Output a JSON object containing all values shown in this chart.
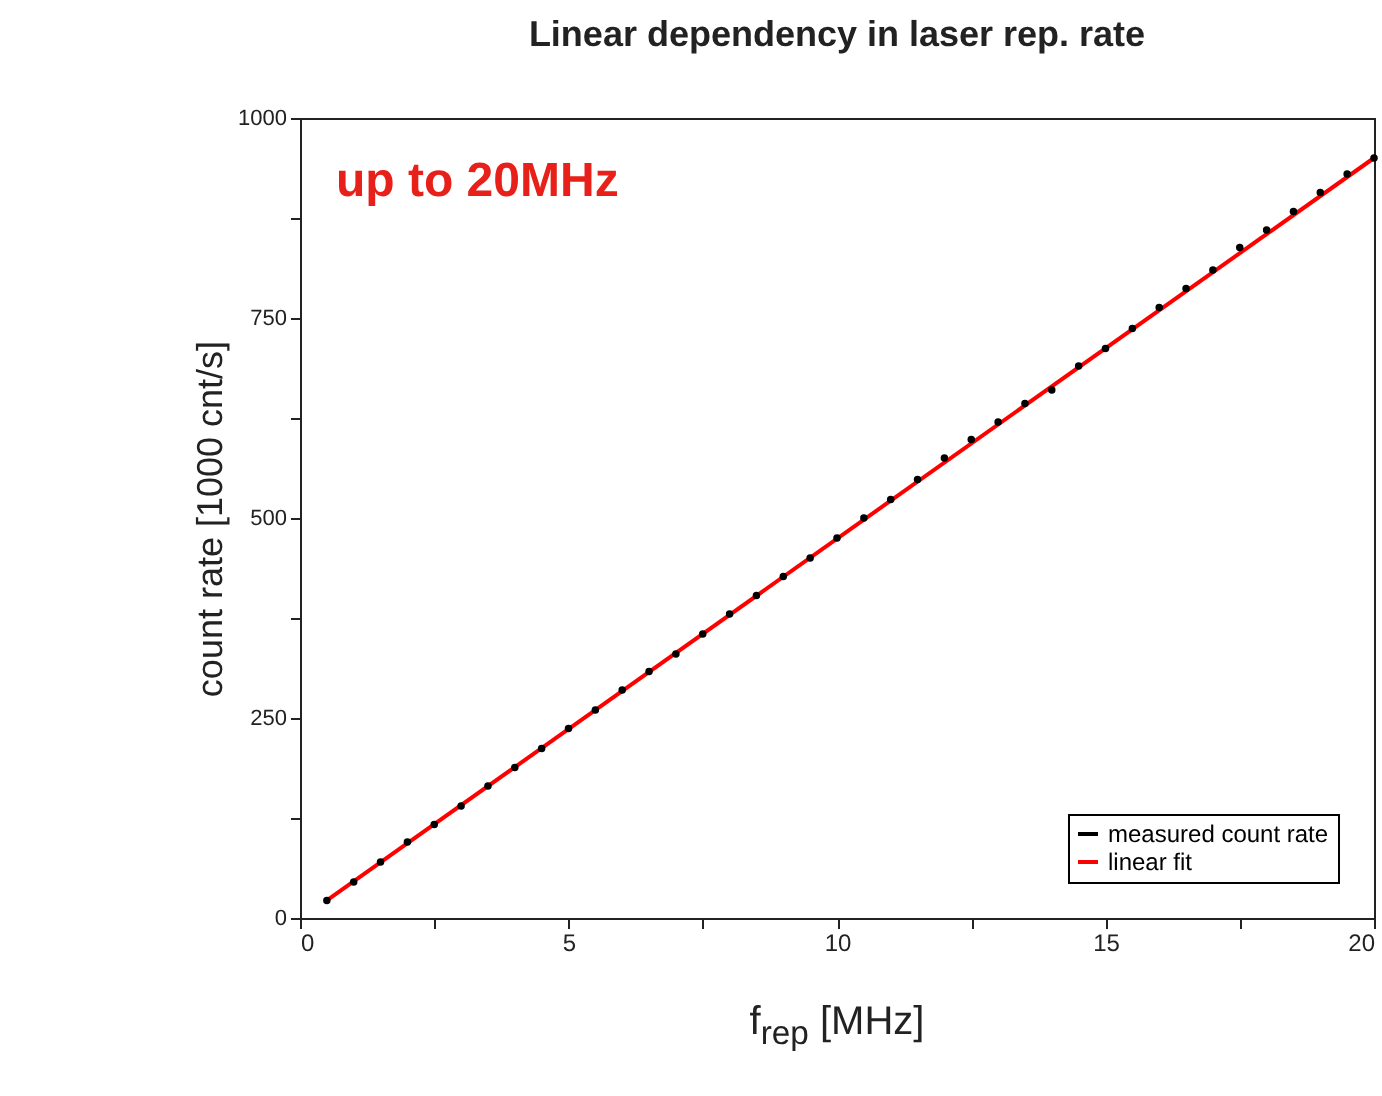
{
  "chart_data": {
    "type": "scatter",
    "title": "Linear dependency in laser rep. rate",
    "xlabel": "f$_{rep}$ [MHz]",
    "ylabel": "count rate [1000 cnt/s]",
    "annotations": [
      "up to 20MHz"
    ],
    "x": [
      0.5,
      1,
      1.5,
      2,
      2.5,
      3,
      3.5,
      4,
      4.5,
      5,
      5.5,
      6,
      6.5,
      7,
      7.5,
      8,
      8.5,
      9,
      9.5,
      10,
      10.5,
      11,
      11.5,
      12,
      12.5,
      13,
      13.5,
      14,
      14.5,
      15,
      15.5,
      16,
      16.5,
      17,
      17.5,
      18,
      18.5,
      19,
      19.5,
      20
    ],
    "series": [
      {
        "name": "measured count rate",
        "color": "#000000",
        "marker": "circle",
        "values": [
          22,
          45,
          70,
          95,
          117,
          140,
          165,
          188,
          212,
          237,
          260,
          285,
          308,
          330,
          355,
          380,
          403,
          427,
          450,
          475,
          500,
          523,
          548,
          575,
          598,
          620,
          643,
          660,
          690,
          712,
          737,
          763,
          787,
          810,
          838,
          860,
          883,
          907,
          930,
          950
        ]
      },
      {
        "name": "linear fit",
        "type": "line",
        "color": "#ff0000",
        "x": [
          0.5,
          20
        ],
        "values": [
          22,
          950
        ]
      }
    ],
    "xlim": [
      0,
      20
    ],
    "xticks": [
      0,
      {
        "value": 2.5,
        "label": null
      },
      5,
      {
        "value": 7.5,
        "label": null
      },
      10,
      {
        "value": 12.5,
        "label": null
      },
      15,
      {
        "value": 17.5,
        "label": null
      },
      20
    ],
    "ylim": [
      0,
      1000
    ],
    "yticks": [
      0,
      {
        "value": 125,
        "label": null
      },
      250,
      {
        "value": 375,
        "label": null
      },
      500,
      {
        "value": 625,
        "label": null
      },
      750,
      {
        "value": 875,
        "label": null
      },
      1000
    ],
    "grid": false,
    "legend": "bottom right",
    "line_style": "solid"
  }
}
